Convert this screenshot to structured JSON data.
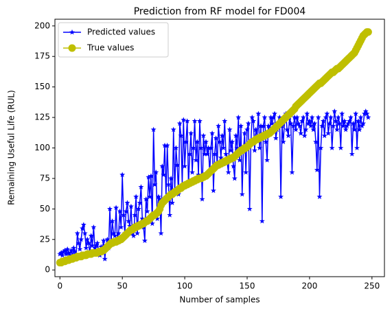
{
  "chart_data": {
    "type": "line",
    "title": "Prediction from RF model for FD004",
    "x_label": "Number of samples",
    "y_label": "Remaining Useful Life (RUL)",
    "x": [
      0,
      1,
      2,
      3,
      4,
      5,
      6,
      7,
      8,
      9,
      10,
      11,
      12,
      13,
      14,
      15,
      16,
      17,
      18,
      19,
      20,
      21,
      22,
      23,
      24,
      25,
      26,
      27,
      28,
      29,
      30,
      31,
      32,
      33,
      34,
      35,
      36,
      37,
      38,
      39,
      40,
      41,
      42,
      43,
      44,
      45,
      46,
      47,
      48,
      49,
      50,
      51,
      52,
      53,
      54,
      55,
      56,
      57,
      58,
      59,
      60,
      61,
      62,
      63,
      64,
      65,
      66,
      67,
      68,
      69,
      70,
      71,
      72,
      73,
      74,
      75,
      76,
      77,
      78,
      79,
      80,
      81,
      82,
      83,
      84,
      85,
      86,
      87,
      88,
      89,
      90,
      91,
      92,
      93,
      94,
      95,
      96,
      97,
      98,
      99,
      100,
      101,
      102,
      103,
      104,
      105,
      106,
      107,
      108,
      109,
      110,
      111,
      112,
      113,
      114,
      115,
      116,
      117,
      118,
      119,
      120,
      121,
      122,
      123,
      124,
      125,
      126,
      127,
      128,
      129,
      130,
      131,
      132,
      133,
      134,
      135,
      136,
      137,
      138,
      139,
      140,
      141,
      142,
      143,
      144,
      145,
      146,
      147,
      148,
      149,
      150,
      151,
      152,
      153,
      154,
      155,
      156,
      157,
      158,
      159,
      160,
      161,
      162,
      163,
      164,
      165,
      166,
      167,
      168,
      169,
      170,
      171,
      172,
      173,
      174,
      175,
      176,
      177,
      178,
      179,
      180,
      181,
      182,
      183,
      184,
      185,
      186,
      187,
      188,
      189,
      190,
      191,
      192,
      193,
      194,
      195,
      196,
      197,
      198,
      199,
      200,
      201,
      202,
      203,
      204,
      205,
      206,
      207,
      208,
      209,
      210,
      211,
      212,
      213,
      214,
      215,
      216,
      217,
      218,
      219,
      220,
      221,
      222,
      223,
      224,
      225,
      226,
      227,
      228,
      229,
      230,
      231,
      232,
      233,
      234,
      235,
      236,
      237,
      238,
      239,
      240,
      241,
      242,
      243,
      244,
      245,
      246,
      247
    ],
    "series": [
      {
        "name": "Predicted values",
        "color": "#0000ff",
        "marker": "star",
        "values": [
          13,
          14,
          12,
          15,
          16,
          13,
          17,
          14,
          12,
          16,
          11,
          18,
          15,
          13,
          30,
          22,
          17,
          25,
          34,
          37,
          30,
          18,
          25,
          22,
          13,
          28,
          20,
          35,
          18,
          20,
          22,
          16,
          12,
          19,
          18,
          24,
          9,
          20,
          25,
          18,
          50,
          22,
          40,
          30,
          28,
          51,
          25,
          30,
          48,
          35,
          78,
          45,
          30,
          48,
          55,
          40,
          36,
          52,
          30,
          28,
          45,
          60,
          30,
          50,
          55,
          68,
          42,
          35,
          24,
          58,
          48,
          76,
          60,
          77,
          38,
          115,
          70,
          80,
          42,
          60,
          58,
          30,
          85,
          78,
          102,
          60,
          102,
          70,
          45,
          75,
          55,
          115,
          65,
          100,
          86,
          62,
          120,
          110,
          70,
          123,
          85,
          105,
          122,
          70,
          95,
          112,
          80,
          100,
          122,
          90,
          105,
          78,
          122,
          100,
          58,
          110,
          95,
          105,
          95,
          100,
          80,
          100,
          112,
          65,
          95,
          108,
          85,
          118,
          105,
          92,
          110,
          100,
          122,
          95,
          88,
          80,
          115,
          98,
          105,
          85,
          75,
          110,
          100,
          125,
          90,
          118,
          62,
          98,
          112,
          80,
          115,
          120,
          50,
          105,
          125,
          122,
          98,
          115,
          110,
          128,
          100,
          118,
          40,
          118,
          125,
          105,
          90,
          118,
          112,
          125,
          120,
          125,
          128,
          108,
          115,
          120,
          125,
          60,
          118,
          105,
          122,
          128,
          115,
          110,
          125,
          120,
          80,
          118,
          125,
          115,
          125,
          120,
          118,
          112,
          122,
          125,
          110,
          115,
          128,
          120,
          122,
          118,
          125,
          115,
          120,
          105,
          82,
          125,
          60,
          100,
          118,
          122,
          110,
          125,
          128,
          112,
          120,
          125,
          100,
          118,
          130,
          122,
          115,
          125,
          120,
          100,
          128,
          118,
          122,
          115,
          118,
          120,
          122,
          125,
          95,
          120,
          115,
          128,
          100,
          122,
          115,
          125,
          118,
          120,
          128,
          130,
          128,
          125
        ]
      },
      {
        "name": "True values",
        "color": "#bfbf00",
        "marker": "circle",
        "values": [
          6,
          6,
          7,
          7,
          7,
          8,
          8,
          8,
          9,
          9,
          9,
          10,
          10,
          10,
          11,
          11,
          11,
          11,
          12,
          12,
          12,
          12,
          13,
          13,
          13,
          13,
          14,
          14,
          14,
          14,
          14,
          15,
          15,
          15,
          16,
          16,
          17,
          18,
          19,
          20,
          21,
          22,
          22,
          23,
          23,
          23,
          24,
          24,
          25,
          25,
          26,
          27,
          28,
          29,
          30,
          31,
          32,
          33,
          33,
          34,
          35,
          35,
          36,
          36,
          37,
          37,
          38,
          38,
          39,
          40,
          40,
          41,
          42,
          43,
          44,
          45,
          45,
          46,
          47,
          48,
          50,
          53,
          55,
          56,
          57,
          58,
          59,
          60,
          61,
          62,
          62,
          63,
          64,
          64,
          65,
          66,
          67,
          67,
          68,
          69,
          69,
          70,
          70,
          71,
          71,
          72,
          72,
          73,
          73,
          74,
          74,
          75,
          75,
          75,
          76,
          76,
          77,
          77,
          78,
          79,
          80,
          81,
          82,
          83,
          84,
          85,
          86,
          86,
          87,
          87,
          88,
          88,
          89,
          89,
          90,
          90,
          91,
          91,
          92,
          92,
          93,
          94,
          95,
          96,
          97,
          98,
          98,
          99,
          100,
          100,
          101,
          102,
          103,
          104,
          105,
          105,
          106,
          107,
          107,
          108,
          108,
          109,
          109,
          110,
          110,
          111,
          111,
          112,
          112,
          113,
          114,
          115,
          116,
          117,
          118,
          119,
          120,
          121,
          122,
          123,
          124,
          125,
          126,
          127,
          128,
          129,
          130,
          131,
          132,
          134,
          135,
          136,
          137,
          138,
          139,
          140,
          141,
          142,
          143,
          144,
          145,
          146,
          147,
          148,
          149,
          150,
          151,
          152,
          153,
          153,
          154,
          155,
          156,
          157,
          158,
          159,
          160,
          161,
          162,
          162,
          163,
          164,
          165,
          165,
          166,
          167,
          168,
          169,
          170,
          171,
          172,
          173,
          174,
          175,
          176,
          177,
          178,
          180,
          182,
          184,
          186,
          188,
          190,
          192,
          193,
          194,
          195,
          195
        ]
      }
    ],
    "xlim": [
      -4,
      260
    ],
    "xticks": [
      0,
      50,
      100,
      150,
      200,
      250
    ],
    "ylim": [
      -5.5,
      205.5
    ],
    "yticks": [
      0,
      25,
      50,
      75,
      100,
      125,
      150,
      175,
      200
    ],
    "legend": "upper left",
    "grid": false
  }
}
